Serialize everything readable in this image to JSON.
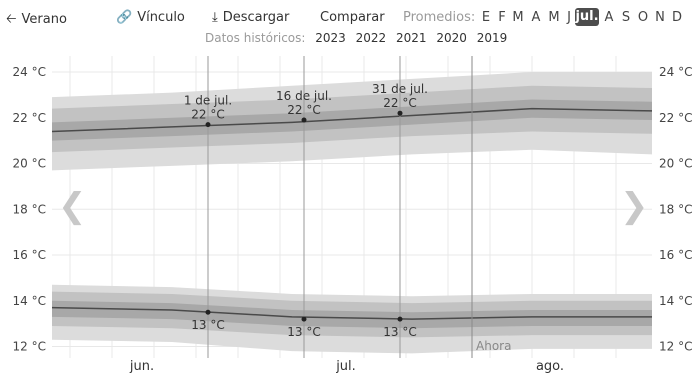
{
  "toolbar": {
    "summer_label": "Verano",
    "link_label": "Vínculo",
    "download_label": "Descargar",
    "compare_label": "Comparar",
    "averages_label": "Promedios:",
    "months": [
      "E",
      "F",
      "M",
      "A",
      "M",
      "J",
      "jul.",
      "A",
      "S",
      "O",
      "N",
      "D"
    ],
    "selected_month_index": 6,
    "history_label": "Datos históricos:",
    "years": [
      "2023",
      "2022",
      "2021",
      "2020",
      "2019"
    ]
  },
  "icons": {
    "summer": "arrow-left-icon",
    "link": "link-icon",
    "download": "download-icon",
    "prev": "chevron-left-icon",
    "next": "chevron-right-icon"
  },
  "chart_data": {
    "type": "area",
    "x_months": [
      "jun.",
      "jul.",
      "ago."
    ],
    "y_ticks": [
      "12 °C",
      "14 °C",
      "16 °C",
      "18 °C",
      "20 °C",
      "22 °C",
      "24 °C"
    ],
    "ylim": [
      11.5,
      24.7
    ],
    "grid": true,
    "now_label": "Ahora",
    "now_day": 70,
    "colors": {
      "outer_band": "#dcdcdc",
      "middle_band": "#c2c2c2",
      "inner_band": "#a8a8a8",
      "line": "#4a4a4a"
    },
    "series": [
      {
        "name": "high",
        "x": [
          0,
          20,
          40,
          60,
          80,
          100
        ],
        "mean": [
          21.4,
          21.6,
          21.8,
          22.1,
          22.4,
          22.3
        ],
        "band_inner": [
          [
            21.0,
            21.8
          ],
          [
            21.2,
            22.0
          ],
          [
            21.4,
            22.2
          ],
          [
            21.7,
            22.5
          ],
          [
            22.0,
            22.8
          ],
          [
            21.9,
            22.7
          ]
        ],
        "band_middle": [
          [
            20.5,
            22.4
          ],
          [
            20.7,
            22.6
          ],
          [
            20.9,
            22.8
          ],
          [
            21.2,
            23.1
          ],
          [
            21.4,
            23.4
          ],
          [
            21.3,
            23.3
          ]
        ],
        "band_outer": [
          [
            19.7,
            22.9
          ],
          [
            19.9,
            23.1
          ],
          [
            20.1,
            23.4
          ],
          [
            20.4,
            23.7
          ],
          [
            20.6,
            24.0
          ],
          [
            20.4,
            24.0
          ]
        ]
      },
      {
        "name": "low",
        "x": [
          0,
          20,
          40,
          60,
          80,
          100
        ],
        "mean": [
          13.7,
          13.6,
          13.3,
          13.2,
          13.3,
          13.3
        ],
        "band_inner": [
          [
            13.3,
            14.0
          ],
          [
            13.2,
            13.9
          ],
          [
            12.9,
            13.6
          ],
          [
            12.8,
            13.5
          ],
          [
            12.9,
            13.6
          ],
          [
            12.9,
            13.6
          ]
        ],
        "band_middle": [
          [
            12.9,
            14.4
          ],
          [
            12.8,
            14.3
          ],
          [
            12.5,
            14.0
          ],
          [
            12.4,
            13.9
          ],
          [
            12.5,
            14.0
          ],
          [
            12.5,
            14.0
          ]
        ],
        "band_outer": [
          [
            12.3,
            14.7
          ],
          [
            12.2,
            14.6
          ],
          [
            11.8,
            14.3
          ],
          [
            11.7,
            14.2
          ],
          [
            11.9,
            14.3
          ],
          [
            11.9,
            14.3
          ]
        ]
      }
    ],
    "annotations": [
      {
        "day": 26,
        "date": "1 de jul.",
        "value": "22 °C",
        "y": 21.7,
        "series": "high"
      },
      {
        "day": 42,
        "date": "16 de jul.",
        "value": "22 °C",
        "y": 21.9,
        "series": "high"
      },
      {
        "day": 58,
        "date": "31 de jul.",
        "value": "22 °C",
        "y": 22.2,
        "series": "high"
      },
      {
        "day": 26,
        "date": "",
        "value": "13 °C",
        "y": 13.5,
        "series": "low"
      },
      {
        "day": 42,
        "date": "",
        "value": "13 °C",
        "y": 13.2,
        "series": "low"
      },
      {
        "day": 58,
        "date": "",
        "value": "13 °C",
        "y": 13.2,
        "series": "low"
      }
    ]
  }
}
